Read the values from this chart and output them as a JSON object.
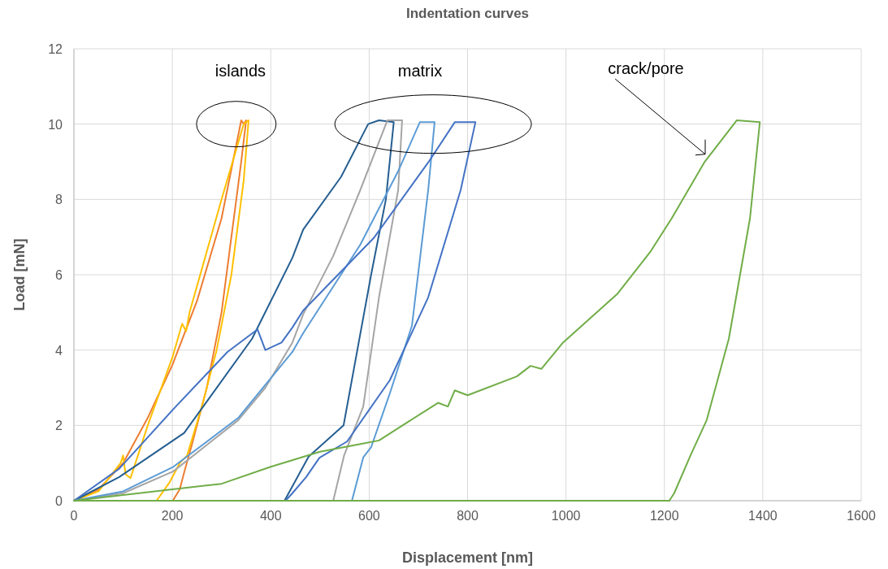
{
  "chart_data": {
    "type": "line",
    "title": "Indentation curves",
    "xlabel": "Displacement [nm]",
    "ylabel": "Load [mN]",
    "xlim": [
      0,
      1600
    ],
    "xticks": [
      0,
      200,
      400,
      600,
      800,
      1000,
      1200,
      1400,
      1600
    ],
    "ylim": [
      0,
      12
    ],
    "yticks": [
      0,
      2,
      4,
      6,
      8,
      10,
      12
    ],
    "grid": true,
    "marker": "none",
    "line_style": "solid",
    "annotations": [
      "islands",
      "matrix",
      "crack/pore"
    ],
    "series": [
      {
        "color": "#ed7d31",
        "x": [
          0,
          50,
          100,
          150,
          200,
          250,
          300,
          340,
          345,
          350,
          340,
          320,
          300,
          270,
          240,
          225,
          215,
          201
        ],
        "values": [
          0,
          0.3,
          1.0,
          2.2,
          3.6,
          5.3,
          7.5,
          10.1,
          10.0,
          10.1,
          9,
          7,
          5,
          3,
          1.5,
          0.8,
          0.3,
          0
        ]
      },
      {
        "color": "#ffc000",
        "x": [
          0,
          50,
          95,
          100,
          105,
          115,
          150,
          200,
          220,
          228,
          235,
          300,
          345,
          355,
          345,
          320,
          290,
          260,
          230,
          215,
          195,
          168
        ],
        "values": [
          0,
          0.25,
          1.0,
          1.2,
          0.7,
          0.6,
          2.0,
          3.8,
          4.7,
          4.5,
          5.0,
          8,
          10.0,
          10.1,
          8.5,
          6,
          4,
          2.5,
          1.2,
          1.0,
          0.5,
          0
        ]
      },
      {
        "color": "#255e91",
        "x": [
          0,
          92,
          224,
          362,
          444,
          466,
          543,
          598,
          620,
          650,
          634,
          604,
          576,
          548,
          477,
          428
        ],
        "values": [
          0,
          0.63,
          1.8,
          4.3,
          6.45,
          7.2,
          8.6,
          10.0,
          10.1,
          10.05,
          8,
          6,
          4,
          2,
          1.17,
          0
        ]
      },
      {
        "color": "#a5a5a5",
        "x": [
          0,
          100,
          202,
          334,
          389,
          444,
          466,
          527,
          582,
          637,
          667,
          659,
          620,
          588,
          549,
          527
        ],
        "values": [
          0,
          0.2,
          0.78,
          2.14,
          3.0,
          4.2,
          4.95,
          6.5,
          8.25,
          10.1,
          10.1,
          8.25,
          5.4,
          2.5,
          1.2,
          0
        ]
      },
      {
        "color": "#5b9bd5",
        "x": [
          0,
          100,
          202,
          334,
          444,
          466,
          582,
          659,
          703,
          733,
          720,
          687,
          642,
          604,
          588,
          565
        ],
        "values": [
          0,
          0.25,
          0.9,
          2.2,
          3.95,
          4.45,
          6.8,
          8.75,
          10.05,
          10.05,
          8.25,
          4.65,
          2.85,
          1.42,
          1.15,
          0
        ]
      },
      {
        "color": "#4472c4",
        "x": [
          0,
          92,
          202,
          312,
          373,
          389,
          422,
          444,
          466,
          609,
          720,
          774,
          816,
          786,
          720,
          642,
          555,
          499,
          472,
          444,
          430
        ],
        "values": [
          0,
          0.85,
          2.43,
          3.95,
          4.55,
          4.0,
          4.2,
          4.6,
          5.05,
          6.97,
          8.98,
          10.05,
          10.05,
          8.25,
          5.4,
          3.2,
          1.57,
          1.14,
          0.63,
          0.2,
          0
        ]
      },
      {
        "color": "#70ad47",
        "x": [
          0,
          100,
          200,
          300,
          400,
          500,
          580,
          620,
          680,
          740,
          760,
          774,
          800,
          900,
          928,
          950,
          994,
          1105,
          1171,
          1215,
          1281,
          1347,
          1394,
          1374,
          1331,
          1286,
          1253,
          1220,
          1210
        ],
        "values": [
          0,
          0.15,
          0.3,
          0.45,
          0.9,
          1.3,
          1.5,
          1.6,
          2.1,
          2.6,
          2.5,
          2.93,
          2.8,
          3.3,
          3.58,
          3.5,
          4.2,
          5.5,
          6.6,
          7.5,
          8.98,
          10.1,
          10.05,
          7.5,
          4.3,
          2.14,
          1.2,
          0.2,
          0
        ]
      },
      {
        "color": "#70ad47",
        "x": [
          0,
          1210
        ],
        "values": [
          0,
          0
        ]
      }
    ]
  }
}
